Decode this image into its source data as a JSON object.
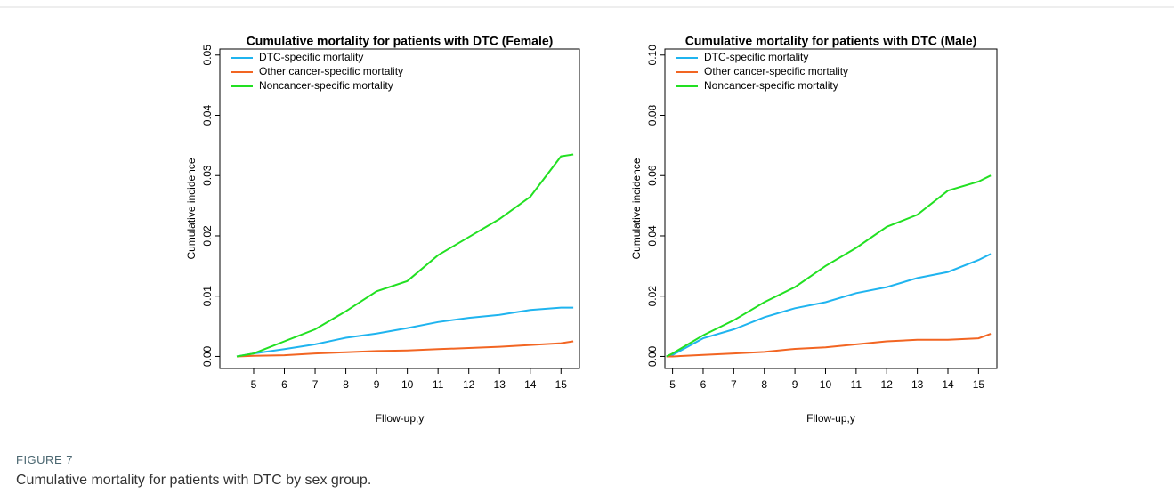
{
  "chart_data": [
    {
      "type": "line",
      "title": "Cumulative mortality for patients with DTC (Female)",
      "xlabel": "Fllow-up,y",
      "ylabel": "Cumulative incidence",
      "x": [
        4.45,
        5,
        6,
        7,
        8,
        9,
        10,
        11,
        12,
        13,
        14,
        15,
        15.4
      ],
      "series": [
        {
          "name": "DTC-specific mortality",
          "color": "#1fb4ef",
          "values": [
            0,
            0.0005,
            0.0012,
            0.002,
            0.0031,
            0.0038,
            0.0047,
            0.0057,
            0.0064,
            0.0069,
            0.0077,
            0.0081,
            0.0081
          ]
        },
        {
          "name": "Other cancer-specific mortality",
          "color": "#f26522",
          "values": [
            0,
            0.0001,
            0.0002,
            0.0005,
            0.0007,
            0.0009,
            0.001,
            0.0012,
            0.0014,
            0.0016,
            0.0019,
            0.0022,
            0.0025
          ]
        },
        {
          "name": "Noncancer-specific mortality",
          "color": "#22e022",
          "values": [
            0,
            0.0005,
            0.0025,
            0.0045,
            0.0075,
            0.0108,
            0.0125,
            0.0168,
            0.0198,
            0.0228,
            0.0265,
            0.0332,
            0.0335
          ]
        }
      ],
      "xlim": [
        3.9,
        15.6
      ],
      "xticks": [
        5,
        6,
        7,
        8,
        9,
        10,
        11,
        12,
        13,
        14,
        15
      ],
      "ylim": [
        -0.002,
        0.051
      ],
      "yticks": [
        {
          "value": 0,
          "label": "0.00"
        },
        {
          "value": 0.01,
          "label": "0.01"
        },
        {
          "value": 0.02,
          "label": "0.02"
        },
        {
          "value": 0.03,
          "label": "0.03"
        },
        {
          "value": 0.04,
          "label": "0.04"
        },
        {
          "value": 0.05,
          "label": "0.05"
        }
      ],
      "legend": "top-left",
      "grid": false
    },
    {
      "type": "line",
      "title": "Cumulative mortality for patients with DTC (Male)",
      "xlabel": "Fllow-up,y",
      "ylabel": "Cumulative incidence",
      "x": [
        4.8,
        5,
        6,
        7,
        8,
        9,
        10,
        11,
        12,
        13,
        14,
        15,
        15.4
      ],
      "series": [
        {
          "name": "DTC-specific mortality",
          "color": "#1fb4ef",
          "values": [
            0,
            0.0005,
            0.006,
            0.009,
            0.013,
            0.016,
            0.018,
            0.021,
            0.023,
            0.026,
            0.028,
            0.032,
            0.034
          ]
        },
        {
          "name": "Other cancer-specific mortality",
          "color": "#f26522",
          "values": [
            0,
            0,
            0.0005,
            0.001,
            0.0015,
            0.0025,
            0.003,
            0.004,
            0.005,
            0.0055,
            0.0055,
            0.006,
            0.0075
          ]
        },
        {
          "name": "Noncancer-specific mortality",
          "color": "#22e022",
          "values": [
            0,
            0.001,
            0.007,
            0.012,
            0.018,
            0.023,
            0.03,
            0.036,
            0.043,
            0.047,
            0.055,
            0.058,
            0.06
          ]
        }
      ],
      "xlim": [
        4.75,
        15.6
      ],
      "xticks": [
        5,
        6,
        7,
        8,
        9,
        10,
        11,
        12,
        13,
        14,
        15
      ],
      "ylim": [
        -0.004,
        0.102
      ],
      "yticks": [
        {
          "value": 0,
          "label": "0.00"
        },
        {
          "value": 0.02,
          "label": "0.02"
        },
        {
          "value": 0.04,
          "label": "0.04"
        },
        {
          "value": 0.06,
          "label": "0.06"
        },
        {
          "value": 0.08,
          "label": "0.08"
        },
        {
          "value": 0.1,
          "label": "0.10"
        }
      ],
      "legend": "top-left",
      "grid": false
    }
  ],
  "figure": {
    "label": "FIGURE 7",
    "caption": "Cumulative mortality for patients with DTC by sex group."
  }
}
